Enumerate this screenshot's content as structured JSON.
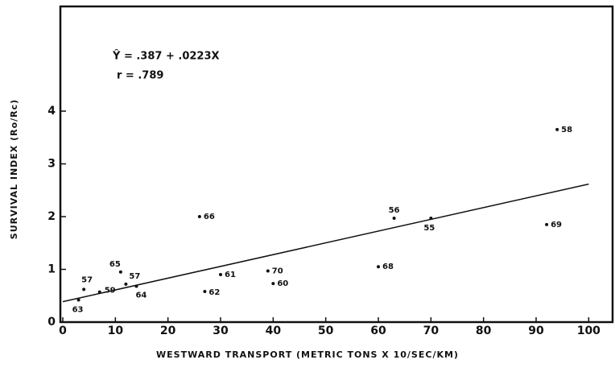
{
  "chart_data": {
    "type": "scatter",
    "annotations": [
      "Ŷ = .387 + .0223X",
      "r = .789"
    ],
    "x_label": "WESTWARD TRANSPORT (METRIC TONS X 10/SEC/KM)",
    "y_label": "SURVIVAL INDEX (Ro/Rc)",
    "x": [
      3,
      4,
      7,
      11,
      12,
      14,
      26,
      27,
      30,
      39,
      40,
      60,
      63,
      70,
      92,
      94
    ],
    "values": [
      0.42,
      0.62,
      0.57,
      0.95,
      0.72,
      0.68,
      2.0,
      0.58,
      0.9,
      0.97,
      0.73,
      1.05,
      1.97,
      1.97,
      1.85,
      3.65
    ],
    "point_labels": [
      "63",
      "57",
      "59",
      "65",
      "57",
      "64",
      "66",
      "62",
      "61",
      "70",
      "60",
      "68",
      "56",
      "55",
      "69",
      "58"
    ],
    "fit_line": {
      "x": [
        0,
        100
      ],
      "y": [
        0.387,
        2.617
      ]
    },
    "color": "#111111",
    "xlim": [
      0,
      105
    ],
    "ylim": [
      0,
      6
    ],
    "xticks": [
      0,
      10,
      20,
      30,
      40,
      50,
      60,
      70,
      80,
      90,
      100
    ],
    "yticks": [
      0,
      1,
      2,
      3,
      4
    ]
  }
}
